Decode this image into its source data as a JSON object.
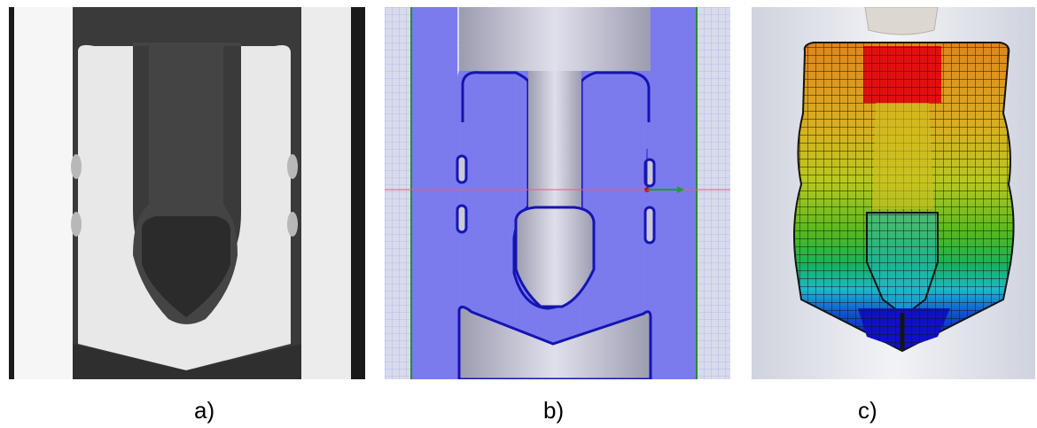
{
  "panels": [
    {
      "id": "a",
      "label": "a)"
    },
    {
      "id": "b",
      "label": "b)"
    },
    {
      "id": "c",
      "label": "c)"
    }
  ],
  "colors": {
    "xray_dark": "#2f2f2f",
    "xray_mid": "#5a5a5a",
    "xray_light": "#e9e9e9",
    "sim_background": "#7b7bf0",
    "sim_part": "#c9c9d9",
    "sim_outline": "#1414b4",
    "fem_red": "#e01010",
    "fem_orange": "#e89a30",
    "fem_yellow": "#d8cc20",
    "fem_green": "#22b222",
    "fem_cyan": "#20b8c8",
    "fem_blue": "#1010c8"
  },
  "icons": {
    "axis_gizmo": "xyz-axis-icon"
  }
}
